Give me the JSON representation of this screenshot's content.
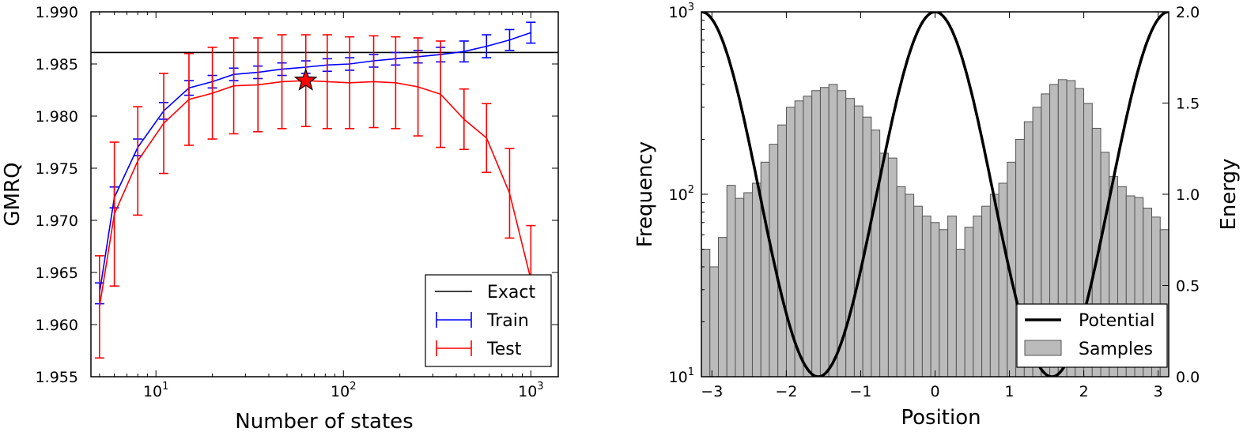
{
  "chart_data": [
    {
      "type": "line",
      "xlabel": "Number of states",
      "ylabel": "GMRQ",
      "xscale": "log",
      "xlim": [
        4.5,
        1400
      ],
      "ylim": [
        1.955,
        1.99
      ],
      "x_ticks": [
        {
          "value": 10,
          "mant": "10",
          "exp": "1"
        },
        {
          "value": 100,
          "mant": "10",
          "exp": "2"
        },
        {
          "value": 1000,
          "mant": "10",
          "exp": "3"
        }
      ],
      "y_ticks": [
        "1.955",
        "1.960",
        "1.965",
        "1.970",
        "1.975",
        "1.980",
        "1.985",
        "1.990"
      ],
      "legend_position": "lower right",
      "legend": {
        "exact": "Exact",
        "train": "Train",
        "test": "Test"
      },
      "exact": {
        "name": "Exact",
        "y": 1.9861,
        "color": "#000000"
      },
      "series": [
        {
          "name": "Train",
          "color": "#0000ff",
          "x": [
            5,
            6,
            8,
            11,
            15,
            20,
            26,
            35,
            47,
            63,
            82,
            108,
            145,
            190,
            250,
            330,
            440,
            580,
            770,
            1000
          ],
          "y": [
            1.963,
            1.9722,
            1.977,
            1.9805,
            1.9827,
            1.9833,
            1.984,
            1.9842,
            1.9845,
            1.9847,
            1.9849,
            1.985,
            1.9853,
            1.9855,
            1.9857,
            1.9859,
            1.9862,
            1.9867,
            1.9873,
            1.988
          ],
          "err": [
            0.001,
            0.001,
            0.0008,
            0.0008,
            0.0007,
            0.0006,
            0.0006,
            0.0006,
            0.0006,
            0.0006,
            0.0006,
            0.0006,
            0.0006,
            0.0006,
            0.0006,
            0.0007,
            0.001,
            0.0011,
            0.001,
            0.001
          ]
        },
        {
          "name": "Test",
          "color": "#ff0000",
          "x": [
            5,
            6,
            8,
            11,
            15,
            20,
            26,
            35,
            47,
            63,
            82,
            108,
            145,
            190,
            250,
            330,
            440,
            580,
            770,
            1000
          ],
          "y": [
            1.9617,
            1.9706,
            1.9757,
            1.9793,
            1.9816,
            1.9822,
            1.9829,
            1.983,
            1.9833,
            1.9834,
            1.9833,
            1.9832,
            1.9833,
            1.9832,
            1.9828,
            1.9821,
            1.9797,
            1.9779,
            1.9726,
            1.9643
          ],
          "err": [
            0.0049,
            0.0069,
            0.0052,
            0.0048,
            0.0044,
            0.0044,
            0.0046,
            0.0045,
            0.0045,
            0.0044,
            0.0045,
            0.0044,
            0.0044,
            0.0044,
            0.0047,
            0.0051,
            0.0029,
            0.0033,
            0.0043,
            0.0052
          ]
        }
      ],
      "marker": {
        "shape": "star",
        "x": 63,
        "y": 1.9834,
        "color": "#ff0000"
      }
    },
    {
      "type": "bar",
      "xlabel": "Position",
      "ylabel": "Frequency",
      "ylabel_right": "Energy",
      "xlim": [
        -3.1416,
        3.1416
      ],
      "ylim": [
        10,
        1000
      ],
      "yscale": "log",
      "ylim_right": [
        0.0,
        2.0
      ],
      "x_ticks": [
        "−3",
        "−2",
        "−1",
        "0",
        "1",
        "2",
        "3"
      ],
      "x_tick_values": [
        -3,
        -2,
        -1,
        0,
        1,
        2,
        3
      ],
      "y_ticks_left": [
        {
          "value": 10,
          "mant": "10",
          "exp": "1"
        },
        {
          "value": 100,
          "mant": "10",
          "exp": "2"
        },
        {
          "value": 1000,
          "mant": "10",
          "exp": "3"
        }
      ],
      "y_ticks_right": [
        "0.0",
        "0.5",
        "1.0",
        "1.5",
        "2.0"
      ],
      "y_tick_values_right": [
        0.0,
        0.5,
        1.0,
        1.5,
        2.0
      ],
      "legend_position": "lower right",
      "legend": {
        "potential": "Potential",
        "samples": "Samples"
      },
      "histogram": {
        "name": "Samples",
        "color": "#bbbbbb",
        "edges_range": [
          -3.1416,
          3.1416
        ],
        "counts": [
          50,
          40,
          58,
          112,
          95,
          102,
          115,
          150,
          188,
          240,
          300,
          325,
          345,
          370,
          385,
          400,
          370,
          335,
          305,
          265,
          225,
          168,
          158,
          110,
          100,
          86,
          76,
          70,
          64,
          76,
          50,
          66,
          76,
          86,
          100,
          115,
          150,
          200,
          250,
          300,
          355,
          400,
          425,
          420,
          380,
          315,
          230,
          170,
          125,
          110,
          98,
          96,
          84,
          75,
          64
        ]
      },
      "potential": {
        "name": "Potential",
        "function": "1 + cos(2x)",
        "color": "#000000"
      }
    }
  ]
}
